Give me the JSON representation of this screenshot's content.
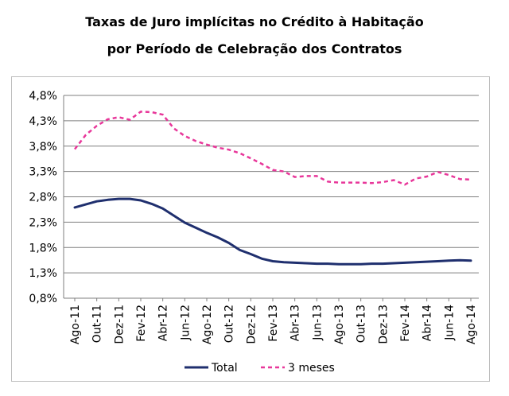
{
  "chart_data": {
    "type": "line",
    "title": "Taxas de Juro implícitas no Crédito à Habitação",
    "subtitle": "por Período de Celebração dos Contratos",
    "y_ticks": [
      "0,8%",
      "1,3%",
      "1,8%",
      "2,3%",
      "2,8%",
      "3,3%",
      "3,8%",
      "4,3%",
      "4,8%"
    ],
    "ylim": [
      0.8,
      4.8
    ],
    "grid": true,
    "legend_position": "bottom",
    "x_tick_labels": [
      "Ago-11",
      "Out-11",
      "Dez-11",
      "Fev-12",
      "Abr-12",
      "Jun-12",
      "Ago-12",
      "Out-12",
      "Dez-12",
      "Fev-13",
      "Abr-13",
      "Jun-13",
      "Ago-13",
      "Out-13",
      "Dez-13",
      "Fev-14",
      "Abr-14",
      "Jun-14",
      "Ago-14"
    ],
    "x": [
      "Ago-11",
      "Set-11",
      "Out-11",
      "Nov-11",
      "Dez-11",
      "Jan-12",
      "Fev-12",
      "Mar-12",
      "Abr-12",
      "Mai-12",
      "Jun-12",
      "Jul-12",
      "Ago-12",
      "Set-12",
      "Out-12",
      "Nov-12",
      "Dez-12",
      "Jan-13",
      "Fev-13",
      "Mar-13",
      "Abr-13",
      "Mai-13",
      "Jun-13",
      "Jul-13",
      "Ago-13",
      "Set-13",
      "Out-13",
      "Nov-13",
      "Dez-13",
      "Jan-14",
      "Fev-14",
      "Mar-14",
      "Abr-14",
      "Mai-14",
      "Jun-14",
      "Jul-14",
      "Ago-14"
    ],
    "series": [
      {
        "name": "Total",
        "color": "#1f2f6e",
        "style": "solid",
        "values": [
          2.59,
          2.65,
          2.71,
          2.74,
          2.76,
          2.76,
          2.73,
          2.66,
          2.57,
          2.43,
          2.29,
          2.19,
          2.09,
          2.0,
          1.89,
          1.75,
          1.67,
          1.58,
          1.53,
          1.51,
          1.5,
          1.49,
          1.48,
          1.48,
          1.47,
          1.47,
          1.47,
          1.48,
          1.48,
          1.49,
          1.5,
          1.51,
          1.52,
          1.53,
          1.54,
          1.55,
          1.54
        ]
      },
      {
        "name": "3 meses",
        "color": "#e8379a",
        "style": "dashed",
        "values": [
          3.74,
          4.02,
          4.2,
          4.33,
          4.37,
          4.32,
          4.48,
          4.47,
          4.42,
          4.15,
          4.0,
          3.9,
          3.83,
          3.77,
          3.73,
          3.66,
          3.56,
          3.45,
          3.33,
          3.3,
          3.19,
          3.21,
          3.21,
          3.1,
          3.08,
          3.08,
          3.08,
          3.07,
          3.09,
          3.13,
          3.04,
          3.16,
          3.2,
          3.29,
          3.23,
          3.15,
          3.14
        ]
      }
    ]
  }
}
